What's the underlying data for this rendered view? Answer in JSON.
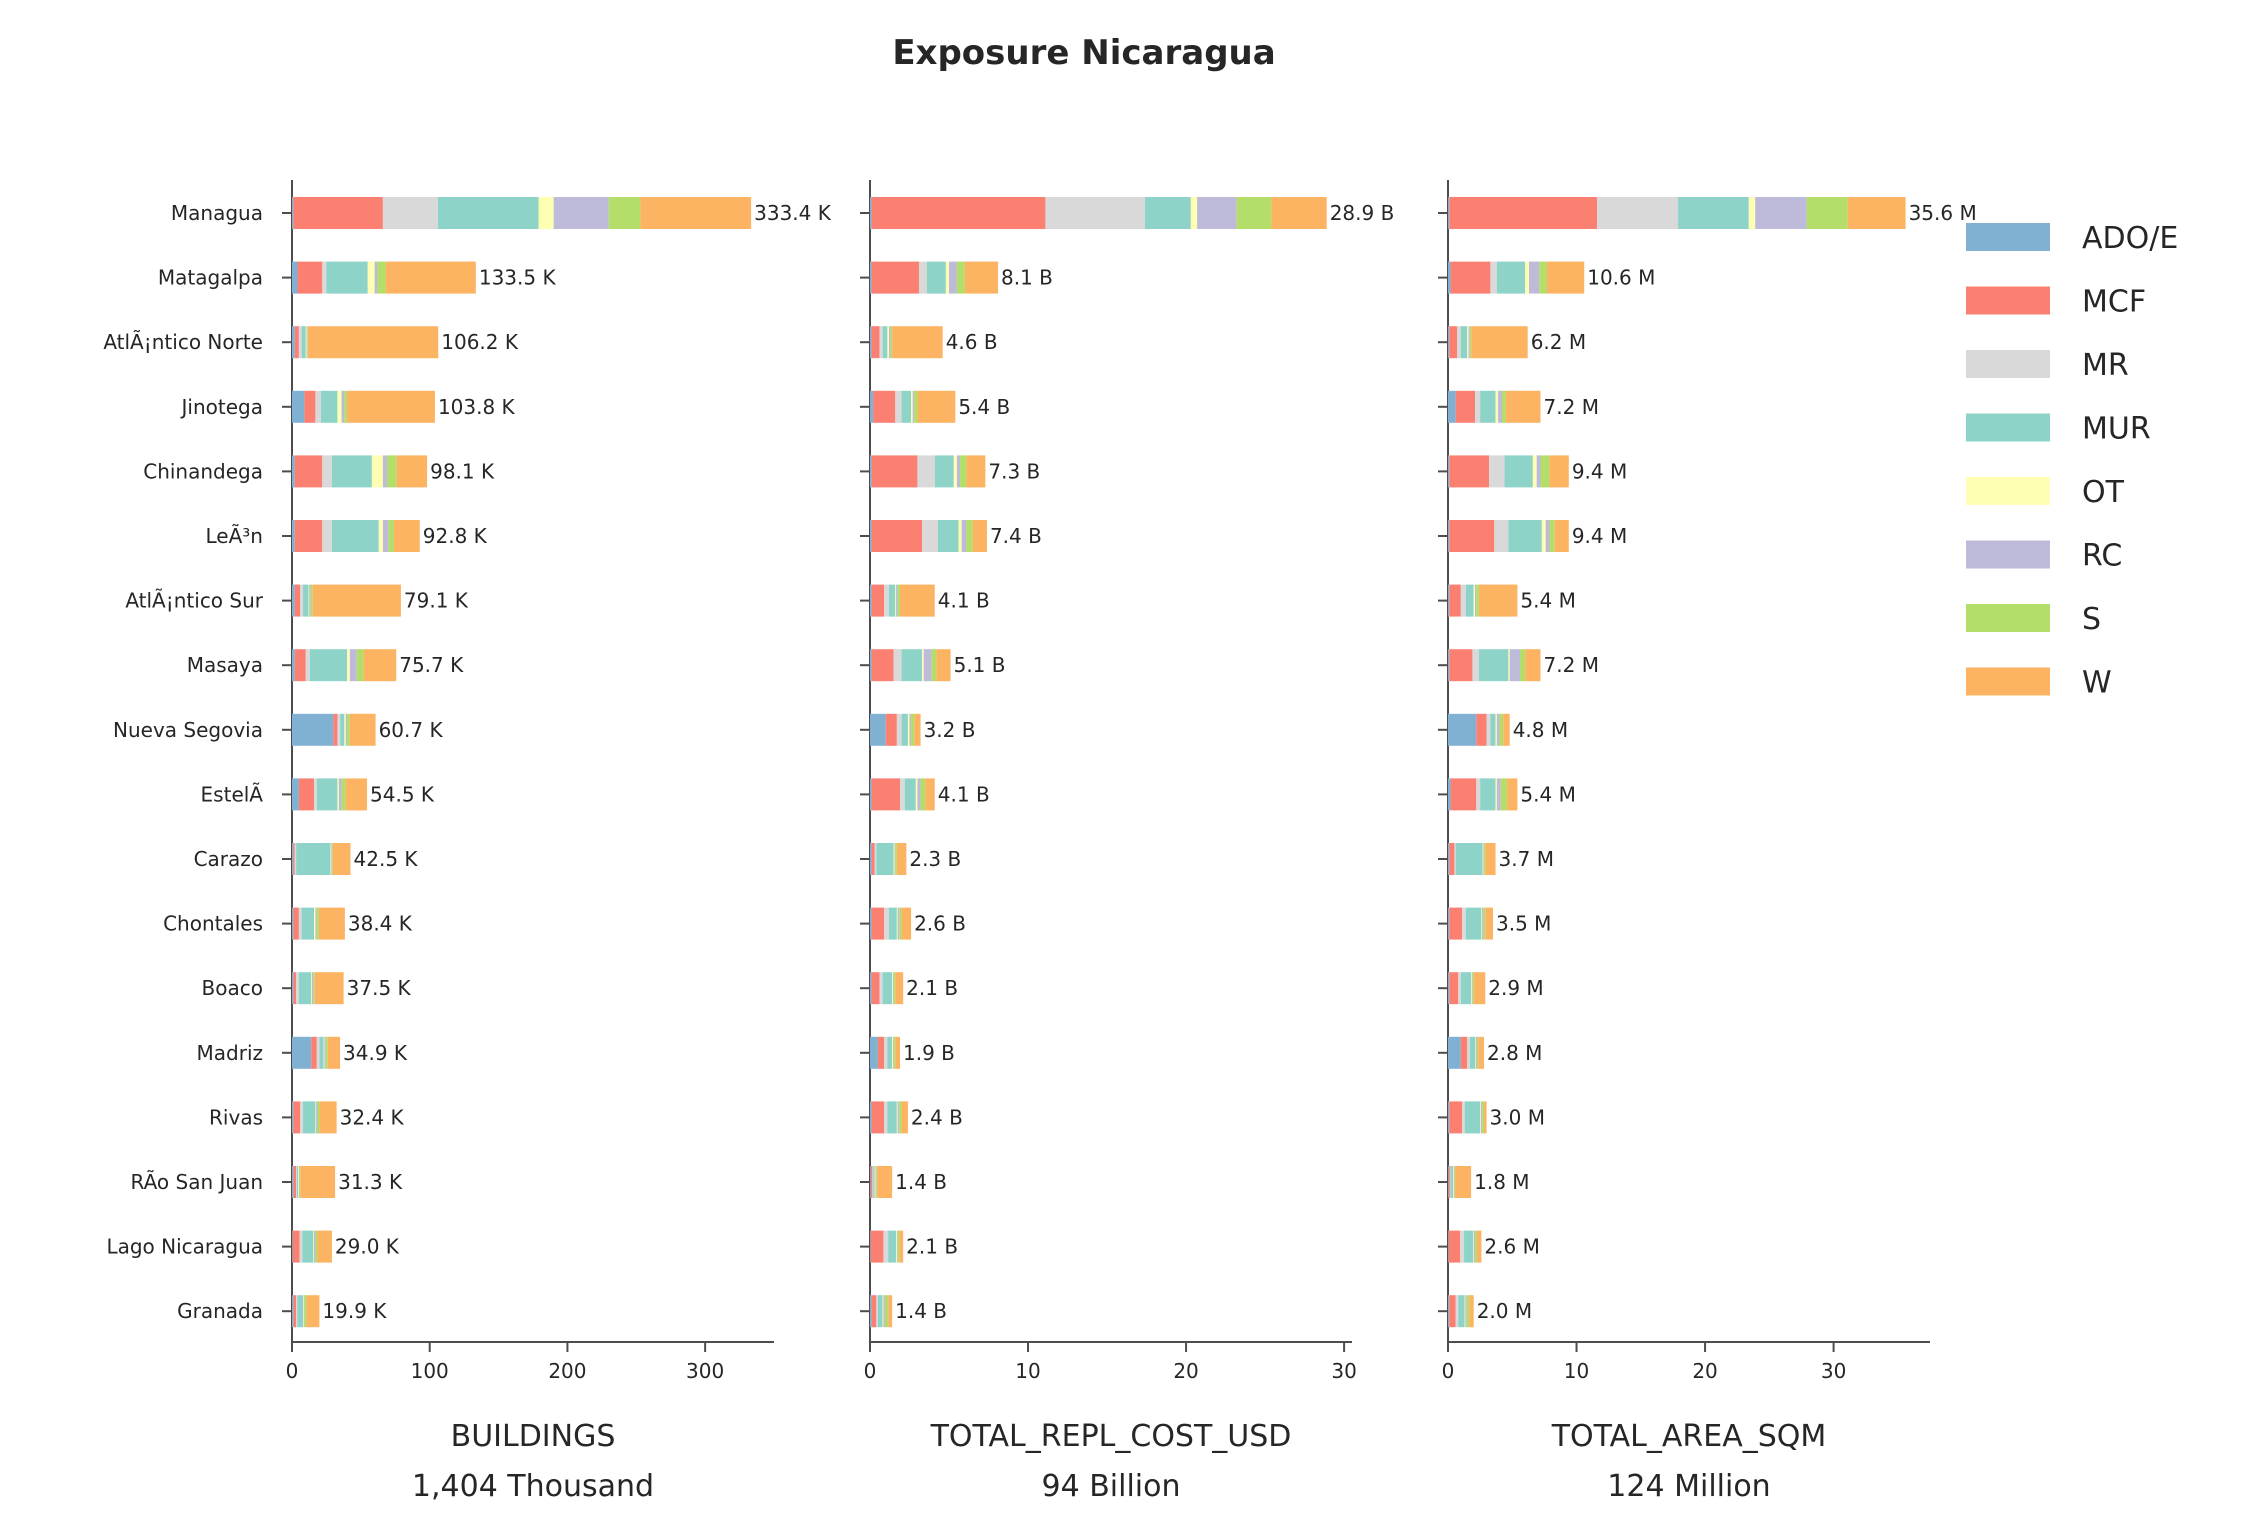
{
  "chart_data": {
    "type": "bar",
    "orientation": "horizontal",
    "stacked": true,
    "title": "Exposure Nicaragua",
    "legend_placement": "right",
    "legend": [
      {
        "name": "ADO/E",
        "color": "#80b1d3"
      },
      {
        "name": "MCF",
        "color": "#fb8072"
      },
      {
        "name": "MR",
        "color": "#d9d9d9"
      },
      {
        "name": "MUR",
        "color": "#8dd3c7"
      },
      {
        "name": "OT",
        "color": "#ffffb3"
      },
      {
        "name": "RC",
        "color": "#bebada"
      },
      {
        "name": "S",
        "color": "#b3de69"
      },
      {
        "name": "W",
        "color": "#fdb462"
      }
    ],
    "categories": [
      "Managua",
      "Matagalpa",
      "AtlÃ¡ntico Norte",
      "Jinotega",
      "Chinandega",
      "LeÃ³n",
      "AtlÃ¡ntico Sur",
      "Masaya",
      "Nueva Segovia",
      "EstelÃ­",
      "Carazo",
      "Chontales",
      "Boaco",
      "Madriz",
      "Rivas",
      "RÃ­o San Juan",
      "Lago Nicaragua",
      "Granada"
    ],
    "panels": [
      {
        "xlabel": "BUILDINGS",
        "xlabel_sub": "1,404 Thousand",
        "xlim": [
          0,
          350
        ],
        "xticks": [
          0,
          100,
          200,
          300
        ],
        "totals": [
          333.4,
          133.5,
          106.2,
          103.8,
          98.1,
          92.8,
          79.1,
          75.7,
          60.7,
          54.5,
          42.5,
          38.4,
          37.5,
          34.9,
          32.4,
          31.3,
          29.0,
          19.9
        ],
        "total_labels": [
          "333.4 K",
          "133.5 K",
          "106.2 K",
          "103.8 K",
          "98.1 K",
          "92.8 K",
          "79.1 K",
          "75.7 K",
          "60.7 K",
          "54.5 K",
          "42.5 K",
          "38.4 K",
          "37.5 K",
          "34.9 K",
          "32.4 K",
          "31.3 K",
          "29.0 K",
          "19.9 K"
        ],
        "segments": [
          [
            1,
            65,
            40,
            73,
            11,
            40,
            23,
            80.4
          ],
          [
            4,
            18,
            3,
            30,
            5,
            2,
            6,
            65.5
          ],
          [
            2,
            3,
            2,
            3,
            0.5,
            0.5,
            0.5,
            94.7
          ],
          [
            9,
            8,
            4,
            12,
            3,
            2,
            2,
            63.8
          ],
          [
            2,
            20,
            7,
            29,
            8,
            3,
            7,
            22.1
          ],
          [
            2,
            20,
            7,
            34,
            3,
            4,
            4,
            18.8
          ],
          [
            2,
            4,
            2,
            4,
            0.5,
            1,
            1.5,
            64.1
          ],
          [
            2,
            8,
            3,
            27,
            2,
            5,
            5,
            23.7
          ],
          [
            30,
            3,
            2,
            3,
            1,
            1,
            2,
            18.7
          ],
          [
            5,
            11,
            2,
            15,
            1,
            2,
            3,
            15.5
          ],
          [
            1,
            1,
            1,
            25,
            0.5,
            0.5,
            0.5,
            13
          ],
          [
            1,
            4,
            2,
            9,
            1,
            1,
            1.5,
            18.9
          ],
          [
            1,
            2,
            2,
            9,
            0.5,
            1,
            1,
            21
          ],
          [
            14,
            4,
            2,
            3,
            0.5,
            1,
            1.5,
            8.9
          ],
          [
            1,
            5,
            2,
            9,
            0.5,
            1,
            1.5,
            12.4
          ],
          [
            1,
            2,
            0.5,
            1,
            0.5,
            0.5,
            0.5,
            25.3
          ],
          [
            0.5,
            5,
            2,
            8,
            0.5,
            1,
            1.5,
            10.5
          ],
          [
            1,
            2,
            1,
            4,
            0.5,
            0.5,
            1.5,
            9.4
          ]
        ]
      },
      {
        "xlabel": "TOTAL_REPL_COST_USD",
        "xlabel_sub": "94 Billion",
        "xlim": [
          0,
          30.5
        ],
        "xticks": [
          0,
          10,
          20,
          30
        ],
        "totals": [
          28.9,
          8.1,
          4.6,
          5.4,
          7.3,
          7.4,
          4.1,
          5.1,
          3.2,
          4.1,
          2.3,
          2.6,
          2.1,
          1.9,
          2.4,
          1.4,
          2.1,
          1.4
        ],
        "total_labels": [
          "28.9 B",
          "8.1 B",
          "4.6 B",
          "5.4 B",
          "7.3 B",
          "7.4 B",
          "4.1 B",
          "5.1 B",
          "3.2 B",
          "4.1 B",
          "2.3 B",
          "2.6 B",
          "2.1 B",
          "1.9 B",
          "2.4 B",
          "1.4 B",
          "2.1 B",
          "1.4 B"
        ],
        "segments": [
          [
            0.1,
            11.0,
            6.3,
            2.9,
            0.4,
            2.5,
            2.2,
            3.5
          ],
          [
            0.1,
            3.0,
            0.5,
            1.2,
            0.2,
            0.5,
            0.5,
            2.1
          ],
          [
            0.1,
            0.5,
            0.2,
            0.3,
            0.1,
            0.1,
            0.1,
            3.2
          ],
          [
            0.2,
            1.4,
            0.4,
            0.6,
            0.1,
            0.1,
            0.2,
            2.4
          ],
          [
            0.1,
            2.9,
            1.1,
            1.2,
            0.2,
            0.2,
            0.4,
            1.2
          ],
          [
            0.1,
            3.2,
            1.0,
            1.3,
            0.2,
            0.3,
            0.4,
            0.9
          ],
          [
            0.1,
            0.8,
            0.3,
            0.4,
            0.05,
            0.1,
            0.15,
            2.2
          ],
          [
            0.1,
            1.4,
            0.5,
            1.3,
            0.1,
            0.5,
            0.3,
            0.9
          ],
          [
            1.0,
            0.7,
            0.3,
            0.4,
            0.1,
            0.1,
            0.2,
            0.4
          ],
          [
            0.1,
            1.8,
            0.3,
            0.7,
            0.1,
            0.2,
            0.3,
            0.6
          ],
          [
            0.1,
            0.2,
            0.1,
            1.1,
            0.05,
            0.05,
            0.1,
            0.6
          ],
          [
            0.1,
            0.8,
            0.3,
            0.5,
            0.05,
            0.1,
            0.15,
            0.6
          ],
          [
            0.1,
            0.5,
            0.2,
            0.6,
            0.05,
            0.05,
            0.1,
            0.5
          ],
          [
            0.5,
            0.4,
            0.2,
            0.3,
            0.05,
            0.05,
            0.1,
            0.3
          ],
          [
            0.1,
            0.8,
            0.2,
            0.6,
            0.05,
            0.1,
            0.15,
            0.4
          ],
          [
            0.05,
            0.1,
            0.05,
            0.1,
            0.05,
            0.05,
            0.05,
            0.95
          ],
          [
            0.05,
            0.8,
            0.3,
            0.5,
            0.05,
            0.05,
            0.1,
            0.25
          ],
          [
            0.1,
            0.3,
            0.1,
            0.3,
            0.05,
            0.1,
            0.2,
            0.25
          ]
        ]
      },
      {
        "xlabel": "TOTAL_AREA_SQM",
        "xlabel_sub": "124 Million",
        "xlim": [
          0,
          37.5
        ],
        "xticks": [
          0,
          10,
          20,
          30
        ],
        "totals": [
          35.6,
          10.6,
          6.2,
          7.2,
          9.4,
          9.4,
          5.4,
          7.2,
          4.8,
          5.4,
          3.7,
          3.5,
          2.9,
          2.8,
          3.0,
          1.8,
          2.6,
          2.0
        ],
        "total_labels": [
          "35.6 M",
          "10.6 M",
          "6.2 M",
          "7.2 M",
          "9.4 M",
          "9.4 M",
          "5.4 M",
          "7.2 M",
          "4.8 M",
          "5.4 M",
          "3.7 M",
          "3.5 M",
          "2.9 M",
          "2.8 M",
          "3.0 M",
          "1.8 M",
          "2.6 M",
          "2.0 M"
        ],
        "segments": [
          [
            0.1,
            11.5,
            6.3,
            5.5,
            0.5,
            4.0,
            3.2,
            4.5
          ],
          [
            0.2,
            3.1,
            0.5,
            2.2,
            0.3,
            0.8,
            0.6,
            2.9
          ],
          [
            0.1,
            0.6,
            0.3,
            0.5,
            0.1,
            0.1,
            0.1,
            4.4
          ],
          [
            0.6,
            1.5,
            0.4,
            1.2,
            0.2,
            0.3,
            0.3,
            2.7
          ],
          [
            0.1,
            3.1,
            1.2,
            2.2,
            0.3,
            0.3,
            0.7,
            1.5
          ],
          [
            0.1,
            3.5,
            1.1,
            2.6,
            0.3,
            0.3,
            0.4,
            1.1
          ],
          [
            0.1,
            0.9,
            0.4,
            0.6,
            0.1,
            0.1,
            0.2,
            3.0
          ],
          [
            0.1,
            1.8,
            0.5,
            2.3,
            0.1,
            0.8,
            0.4,
            1.2
          ],
          [
            2.2,
            0.8,
            0.3,
            0.4,
            0.1,
            0.2,
            0.3,
            0.5
          ],
          [
            0.2,
            2.0,
            0.3,
            1.2,
            0.1,
            0.3,
            0.5,
            0.8
          ],
          [
            0.1,
            0.4,
            0.1,
            2.1,
            0.05,
            0.05,
            0.1,
            0.8
          ],
          [
            0.1,
            1.0,
            0.3,
            1.2,
            0.05,
            0.1,
            0.15,
            0.6
          ],
          [
            0.1,
            0.7,
            0.2,
            0.8,
            0.05,
            0.05,
            0.1,
            0.9
          ],
          [
            1.0,
            0.5,
            0.2,
            0.4,
            0.05,
            0.1,
            0.1,
            0.45
          ],
          [
            0.1,
            1.0,
            0.2,
            1.2,
            0.05,
            0.1,
            0.15,
            0.2
          ],
          [
            0.05,
            0.1,
            0.05,
            0.2,
            0.05,
            0.05,
            0.05,
            1.25
          ],
          [
            0.05,
            0.9,
            0.3,
            0.7,
            0.05,
            0.1,
            0.15,
            0.35
          ],
          [
            0.1,
            0.5,
            0.2,
            0.5,
            0.05,
            0.1,
            0.2,
            0.35
          ]
        ]
      }
    ]
  }
}
